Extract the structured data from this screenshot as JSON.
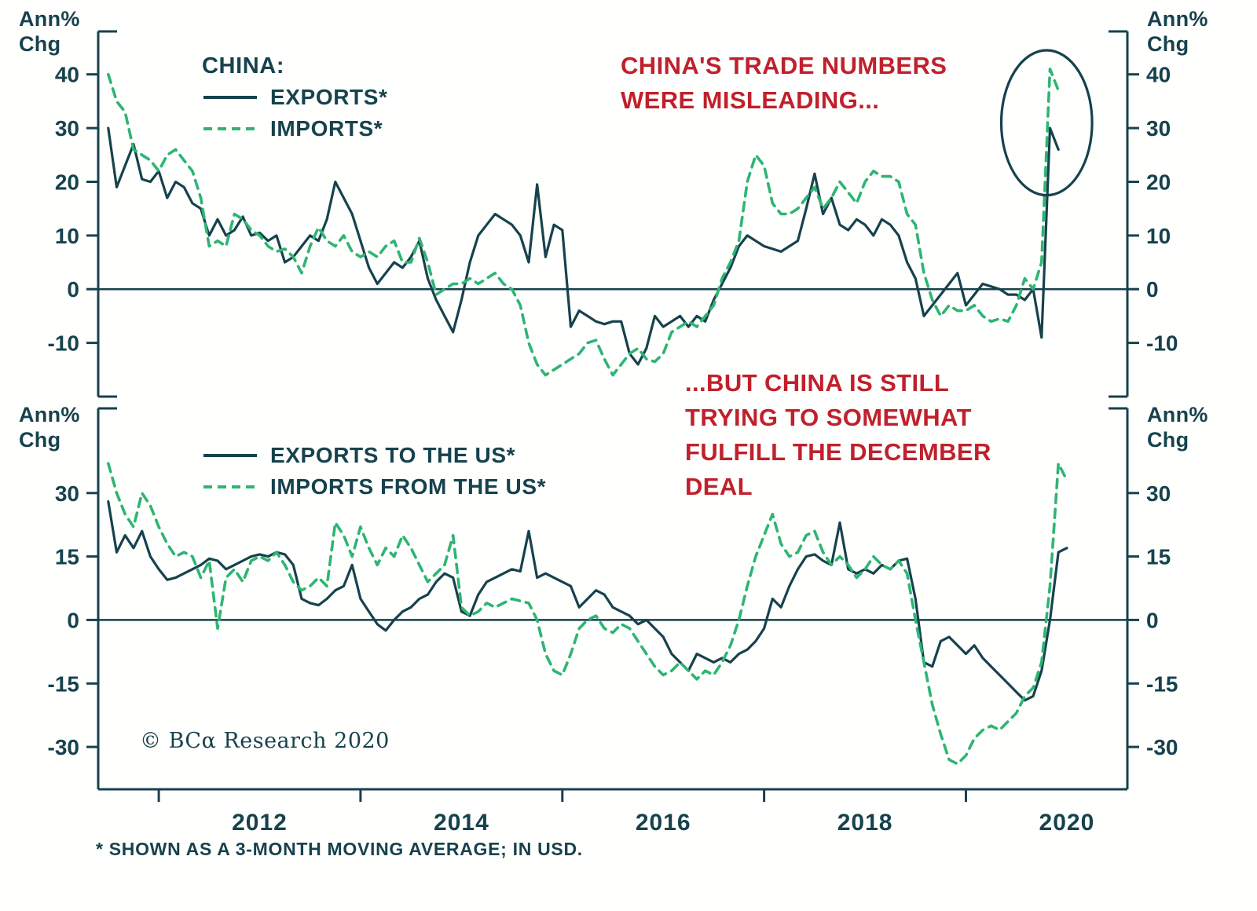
{
  "colors": {
    "dark": "#16424d",
    "green": "#2eb573",
    "red": "#c0202c"
  },
  "axis_labels": {
    "corner": "Ann%\nChg"
  },
  "footnote": "* SHOWN AS A 3-MONTH MOVING AVERAGE; IN USD.",
  "copyright": "© BCα Research 2020",
  "chart_data": [
    {
      "type": "line",
      "title": "CHINA:",
      "annotation": "CHINA'S TRADE NUMBERS\nWERE MISLEADING...",
      "ylabel_left": "Ann% Chg",
      "ylabel_right": "Ann% Chg",
      "legend_position": "top-left",
      "grid": false,
      "xlim": [
        2010.4,
        2020.6
      ],
      "ylim": [
        -20,
        48
      ],
      "yticks": [
        40,
        30,
        20,
        10,
        0,
        -10
      ],
      "x_start": 2010.5,
      "x_step": 0.0833333,
      "ellipse": {
        "cx": 2019.8,
        "cy": 31,
        "rx": 0.45,
        "ry": 13.5
      },
      "series": [
        {
          "name": "EXPORTS*",
          "style": "solid",
          "color": "#16424d",
          "values": [
            30,
            19,
            23,
            27,
            20.5,
            20,
            22,
            17,
            20,
            19,
            16,
            15,
            10,
            13,
            10,
            11,
            13.5,
            10,
            10.5,
            9,
            10,
            5,
            6,
            8,
            10,
            9,
            13,
            20,
            17,
            14,
            9,
            4,
            1,
            3,
            5,
            4,
            6,
            9,
            2,
            -2,
            -5,
            -8,
            -2,
            5,
            10,
            12,
            14,
            13,
            12,
            10,
            5,
            19.5,
            6,
            12,
            11,
            -7,
            -4,
            -5,
            -6,
            -6.5,
            -6,
            -6,
            -12,
            -14,
            -11,
            -5,
            -7,
            -6,
            -5,
            -7,
            -5,
            -6,
            -2,
            1,
            4,
            8,
            10,
            9,
            8,
            7.5,
            7,
            8,
            9,
            15,
            21.5,
            14,
            17,
            12,
            11,
            13,
            12,
            10,
            13,
            12,
            10,
            5,
            2,
            -5,
            -3,
            -1,
            1,
            3,
            -3,
            -1,
            1,
            0.5,
            0,
            -1,
            -1,
            -2,
            0,
            -9,
            30,
            26
          ]
        },
        {
          "name": "IMPORTS*",
          "style": "dashed",
          "color": "#2eb573",
          "values": [
            40,
            35,
            33,
            26,
            25,
            24,
            22,
            25,
            26,
            24,
            22,
            17,
            8,
            9,
            8,
            14,
            13,
            11,
            10,
            8,
            7,
            7.5,
            6,
            3,
            8,
            11.5,
            9,
            8,
            10,
            7,
            6,
            7,
            6,
            8,
            9,
            5,
            5,
            9.5,
            5,
            -1,
            0,
            1,
            1,
            2,
            1,
            2,
            3,
            1,
            0,
            -3,
            -10,
            -14,
            -16,
            -15,
            -14,
            -13,
            -12,
            -10,
            -9.5,
            -13,
            -16,
            -14,
            -12,
            -11,
            -13,
            -13.5,
            -12,
            -8,
            -7,
            -6,
            -7,
            -5,
            -3,
            2,
            5,
            9,
            20,
            25,
            23,
            16,
            14,
            14,
            15,
            17,
            19,
            15,
            17,
            20,
            18,
            16,
            20,
            22,
            21,
            21,
            20,
            14,
            12,
            3,
            -2,
            -5,
            -3,
            -4,
            -4,
            -3,
            -5,
            -6,
            -5.5,
            -6,
            -3,
            2,
            0,
            5,
            41,
            37
          ]
        }
      ]
    },
    {
      "type": "line",
      "title": "",
      "annotation": "...BUT CHINA IS STILL\nTRYING TO SOMEWHAT\nFULFILL THE DECEMBER\nDEAL",
      "ylabel_left": "Ann% Chg",
      "ylabel_right": "Ann% Chg",
      "legend_position": "top-left",
      "grid": false,
      "xlim": [
        2010.4,
        2020.6
      ],
      "ylim": [
        -40,
        50
      ],
      "yticks": [
        30,
        15,
        0,
        -15,
        -30
      ],
      "xticks": [
        2012,
        2014,
        2016,
        2018,
        2020
      ],
      "xticks_minor": [
        2011,
        2013,
        2015,
        2017,
        2019
      ],
      "x_start": 2010.5,
      "x_step": 0.0833333,
      "series": [
        {
          "name": "EXPORTS TO THE US*",
          "style": "solid",
          "color": "#16424d",
          "values": [
            28,
            16,
            20,
            17,
            21,
            15,
            12,
            9.5,
            10,
            11,
            12,
            13,
            14.5,
            14,
            12,
            13,
            14,
            15,
            15.5,
            15,
            16,
            15.5,
            13,
            5,
            4,
            3.5,
            5,
            7,
            8,
            13,
            5,
            2,
            -1,
            -2.5,
            0,
            2,
            3,
            5,
            6,
            9,
            11,
            10,
            2,
            1,
            6,
            9,
            10,
            11,
            12,
            11.5,
            21,
            10,
            11,
            10,
            9,
            8,
            3,
            5,
            7,
            6,
            3,
            2,
            1,
            -1,
            0,
            -2,
            -4,
            -8,
            -10,
            -12,
            -8,
            -9,
            -10,
            -9,
            -10,
            -8,
            -7,
            -5,
            -2,
            5,
            3,
            8,
            12,
            15,
            15.5,
            14,
            13,
            23,
            12,
            11,
            12,
            11,
            13,
            12,
            14,
            14.5,
            5,
            -10,
            -11,
            -5,
            -4,
            -6,
            -8,
            -6,
            -9,
            -11,
            -13,
            -15,
            -17,
            -19,
            -18,
            -12,
            0,
            16,
            17
          ]
        },
        {
          "name": "IMPORTS FROM THE US*",
          "style": "dashed",
          "color": "#2eb573",
          "values": [
            37,
            30,
            25,
            22,
            30,
            27,
            22,
            18,
            15,
            16,
            15,
            10,
            14,
            -2,
            10,
            12,
            9,
            14,
            15,
            14,
            16,
            13,
            9,
            7,
            8,
            10,
            8,
            23,
            20,
            15,
            22,
            17,
            13,
            17,
            15,
            20,
            17,
            13,
            9,
            11,
            13,
            20,
            3,
            1,
            2,
            4,
            3,
            4,
            5,
            4.5,
            4,
            0,
            -8,
            -12,
            -13,
            -8,
            -2,
            0,
            1,
            -2,
            -3,
            -1,
            -2,
            -5,
            -8,
            -11,
            -13,
            -12,
            -10,
            -12,
            -14,
            -12,
            -13,
            -10,
            -6,
            0,
            8,
            15,
            20,
            25,
            18,
            15,
            16,
            20,
            21,
            16,
            13,
            15,
            13,
            10,
            12,
            15,
            13,
            12,
            14,
            11,
            0,
            -10,
            -20,
            -27,
            -33,
            -34,
            -32,
            -28,
            -26,
            -25,
            -26,
            -24,
            -22,
            -18,
            -16,
            -10,
            8,
            37,
            33
          ]
        }
      ]
    }
  ]
}
